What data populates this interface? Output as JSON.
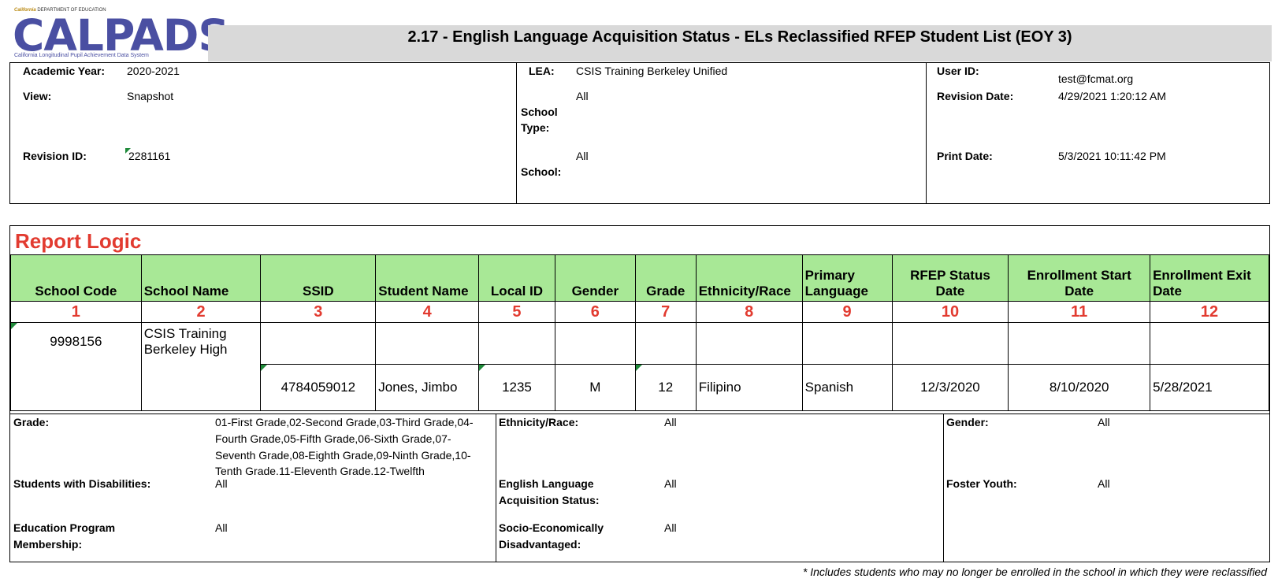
{
  "header": {
    "logo": {
      "state": "California",
      "department": "DEPARTMENT OF EDUCATION",
      "brand": "CALPADS",
      "tagline": "California Longitudinal Pupil Achievement Data System"
    },
    "title": "2.17 - English Language Acquisition Status - ELs Reclassified RFEP Student List (EOY 3)"
  },
  "info": {
    "academic_year_label": "Academic Year:",
    "academic_year": "2020-2021",
    "view_label": "View:",
    "view": "Snapshot",
    "revision_id_label": "Revision ID:",
    "revision_id": "2281161",
    "lea_label": "LEA:",
    "lea": "CSIS Training Berkeley Unified",
    "school_type_label_1": "School",
    "school_type_label_2": "Type:",
    "school_type": "All",
    "school_label": "School:",
    "school": "All",
    "user_id_label": "User ID:",
    "user_id": "test@fcmat.org",
    "revision_date_label": "Revision Date:",
    "revision_date": "4/29/2021 1:20:12 AM",
    "print_date_label": "Print Date:",
    "print_date": "5/3/2021 10:11:42 PM"
  },
  "report": {
    "title": "Report Logic",
    "columns": [
      {
        "label": "School Code",
        "num": "1"
      },
      {
        "label": "School Name",
        "num": "2"
      },
      {
        "label": "SSID",
        "num": "3"
      },
      {
        "label": "Student Name",
        "num": "4"
      },
      {
        "label": "Local ID",
        "num": "5"
      },
      {
        "label": "Gender",
        "num": "6"
      },
      {
        "label": "Grade",
        "num": "7"
      },
      {
        "label": "Ethnicity/Race",
        "num": "8"
      },
      {
        "label": "Primary Language",
        "num": "9"
      },
      {
        "label": "RFEP Status Date",
        "num": "10"
      },
      {
        "label": "Enrollment Start Date",
        "num": "11"
      },
      {
        "label": "Enrollment Exit Date",
        "num": "12"
      }
    ],
    "school_row": {
      "school_code": "9998156",
      "school_name": "CSIS Training Berkeley High"
    },
    "student_row": {
      "ssid": "4784059012",
      "student_name": "Jones, Jimbo",
      "local_id": "1235",
      "gender": "M",
      "grade": "12",
      "ethnicity": "Filipino",
      "primary_language": "Spanish",
      "rfep_status_date": "12/3/2020",
      "enrollment_start": "8/10/2020",
      "enrollment_exit": "5/28/2021"
    }
  },
  "filters": {
    "grade_label": "Grade:",
    "grade_l1": "01-First Grade,02-Second Grade,03-Third Grade,04-",
    "grade_l2": "Fourth Grade,05-Fifth Grade,06-Sixth Grade,07-",
    "grade_l3": "Seventh Grade,08-Eighth Grade,09-Ninth Grade,10-",
    "grade_l4": "Tenth Grade.11-Eleventh Grade.12-Twelfth",
    "swd_label": "Students with Disabilities:",
    "swd": "All",
    "epm_label_1": "Education Program",
    "epm_label_2": "Membership:",
    "epm": "All",
    "eth_label": "Ethnicity/Race:",
    "eth": "All",
    "ela_label_1": "English Language",
    "ela_label_2": "Acquisition Status:",
    "ela": "All",
    "sed_label_1": "Socio-Economically",
    "sed_label_2": "Disadvantaged:",
    "sed": "All",
    "gender_label": "Gender:",
    "gender": "All",
    "foster_label": "Foster Youth:",
    "foster": "All"
  },
  "footnote": "* Includes students who may no longer be enrolled in the school in which they were reclassified"
}
